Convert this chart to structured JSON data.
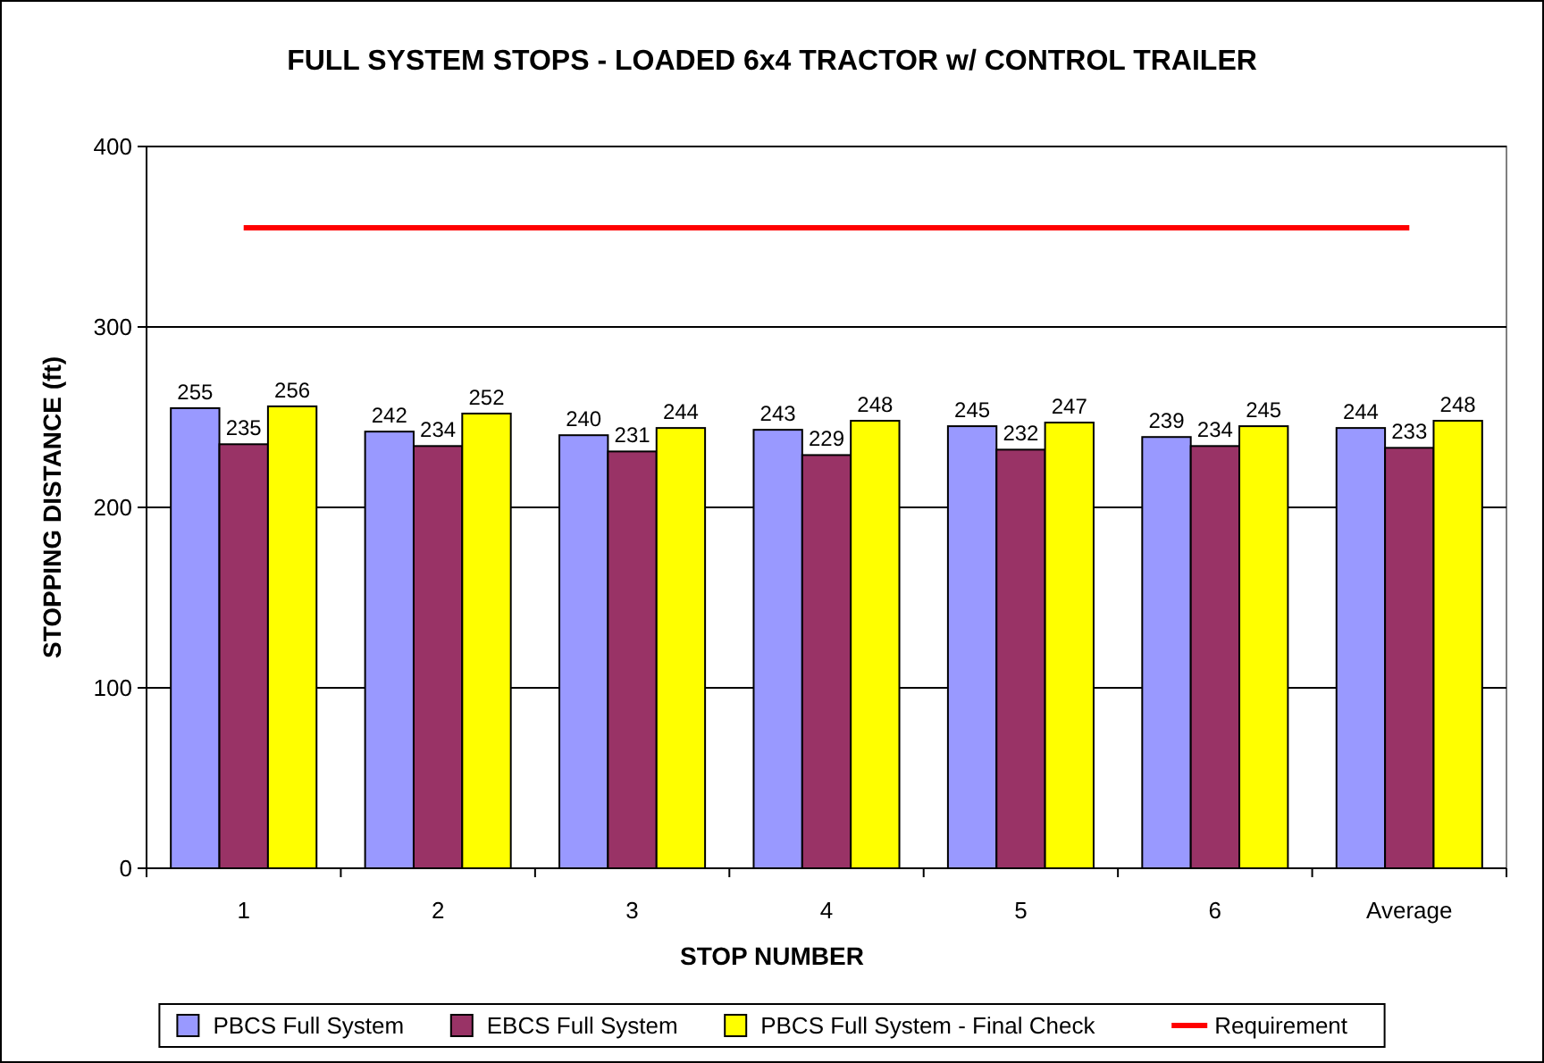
{
  "chart_data": {
    "type": "bar",
    "title": "FULL SYSTEM STOPS - LOADED 6x4 TRACTOR w/ CONTROL TRAILER",
    "xlabel": "STOP NUMBER",
    "ylabel": "STOPPING DISTANCE (ft)",
    "categories": [
      "1",
      "2",
      "3",
      "4",
      "5",
      "6",
      "Average"
    ],
    "series": [
      {
        "name": "PBCS Full System",
        "color": "#9999ff",
        "values": [
          255,
          242,
          240,
          243,
          245,
          239,
          244
        ],
        "value_labels": [
          "255",
          "242",
          "240",
          "243",
          "245",
          "239",
          "244"
        ]
      },
      {
        "name": "EBCS Full System",
        "color": "#993366",
        "values": [
          235,
          234,
          231,
          229,
          232,
          234,
          233
        ],
        "value_labels": [
          "235",
          "234",
          "231",
          "229",
          "232",
          "234",
          "233"
        ]
      },
      {
        "name": "PBCS Full System - Final Check",
        "color": "#ffff00",
        "values": [
          256,
          252,
          244,
          248,
          247,
          245,
          248
        ],
        "value_labels": [
          "256",
          "252",
          "244",
          "248",
          "247",
          "245",
          "248"
        ]
      },
      {
        "name": "Requirement",
        "type": "line",
        "color": "#ff0000",
        "values": [
          355,
          355,
          355,
          355,
          355,
          355,
          355
        ]
      }
    ],
    "ylim": [
      0,
      400
    ],
    "yticks": [
      0,
      100,
      200,
      300,
      400
    ],
    "grid": "y",
    "legend": "bottom"
  }
}
